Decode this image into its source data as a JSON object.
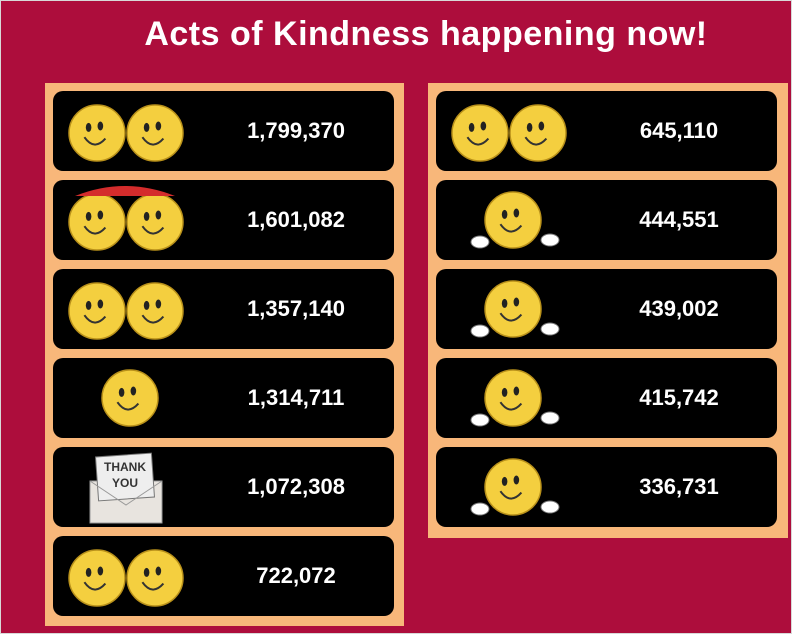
{
  "title": "Acts of Kindness happening now!",
  "left_column": [
    {
      "count": "1,799,370"
    },
    {
      "count": "1,601,082"
    },
    {
      "count": "1,357,140"
    },
    {
      "count": "1,314,711"
    },
    {
      "count": "1,072,308",
      "card_lines": [
        "THANK",
        "YOU"
      ]
    },
    {
      "count": "722,072"
    }
  ],
  "right_column": [
    {
      "count": "645,110"
    },
    {
      "count": "444,551"
    },
    {
      "count": "439,002"
    },
    {
      "count": "415,742"
    },
    {
      "count": "336,731"
    }
  ]
}
